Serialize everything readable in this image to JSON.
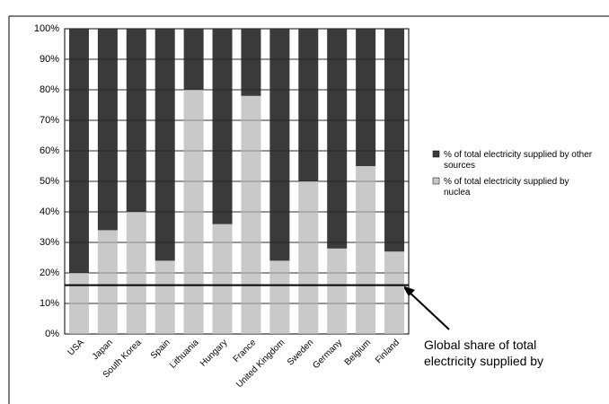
{
  "chart_data": {
    "type": "stacked_bar",
    "categories": [
      "USA",
      "Japan",
      "South Korea",
      "Spain",
      "Lithuania",
      "Hungary",
      "France",
      "United Kingdom",
      "Sweden",
      "Germany",
      "Belgium",
      "Finland"
    ],
    "series": [
      {
        "name": "% of total electricity supplied by nuclea",
        "color": "#c9c9c9",
        "values": [
          20,
          34,
          40,
          24,
          80,
          36,
          78,
          24,
          50,
          28,
          55,
          27
        ]
      },
      {
        "name": "% of total electricity supplied by other sources",
        "color": "#3a3a3a",
        "values": [
          80,
          66,
          60,
          76,
          20,
          64,
          22,
          76,
          50,
          72,
          45,
          73
        ]
      }
    ],
    "ylim": [
      0,
      100
    ],
    "yticks": [
      {
        "value": 0,
        "label": "0%"
      },
      {
        "value": 10,
        "label": "10%"
      },
      {
        "value": 20,
        "label": "20%"
      },
      {
        "value": 30,
        "label": "30%"
      },
      {
        "value": 40,
        "label": "40%"
      },
      {
        "value": 50,
        "label": "50%"
      },
      {
        "value": 60,
        "label": "60%"
      },
      {
        "value": 70,
        "label": "70%"
      },
      {
        "value": 80,
        "label": "80%"
      },
      {
        "value": 90,
        "label": "90%"
      },
      {
        "value": 100,
        "label": "100%"
      }
    ],
    "grid": true,
    "reference_line": {
      "value": 16,
      "label": "Global share of total electricity supplied by"
    }
  }
}
